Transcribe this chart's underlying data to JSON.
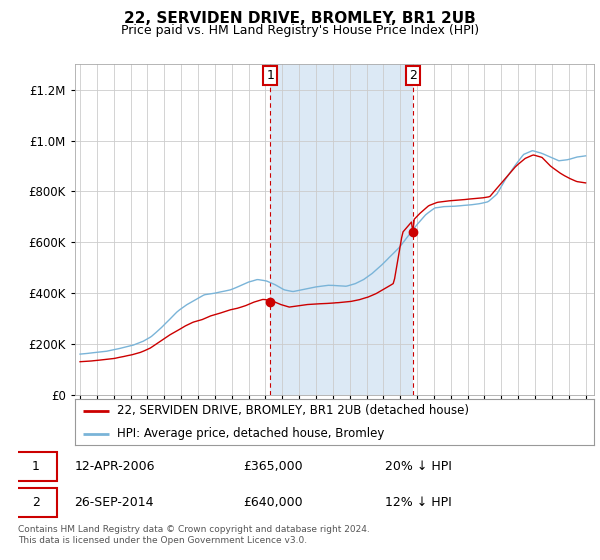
{
  "title": "22, SERVIDEN DRIVE, BROMLEY, BR1 2UB",
  "subtitle": "Price paid vs. HM Land Registry's House Price Index (HPI)",
  "background_chart": "#ffffff",
  "shade_color": "#dce9f5",
  "background_fig": "#ffffff",
  "sale1_label": "1",
  "sale1_date": "12-APR-2006",
  "sale1_price": 365000,
  "sale1_year": 2006.29,
  "sale1_hpi_pct": "20% ↓ HPI",
  "sale2_label": "2",
  "sale2_date": "26-SEP-2014",
  "sale2_price": 640000,
  "sale2_year": 2014.75,
  "sale2_hpi_pct": "12% ↓ HPI",
  "legend_line1": "22, SERVIDEN DRIVE, BROMLEY, BR1 2UB (detached house)",
  "legend_line2": "HPI: Average price, detached house, Bromley",
  "footer": "Contains HM Land Registry data © Crown copyright and database right 2024.\nThis data is licensed under the Open Government Licence v3.0.",
  "ylim": [
    0,
    1300000
  ],
  "xlim_start": 1994.7,
  "xlim_end": 2025.5,
  "hpi_color": "#7ab4d8",
  "price_color": "#cc0000",
  "sale_marker_color": "#cc0000",
  "annotation_box_color": "#cc0000",
  "grid_color": "#cccccc",
  "title_fontsize": 11,
  "subtitle_fontsize": 9
}
